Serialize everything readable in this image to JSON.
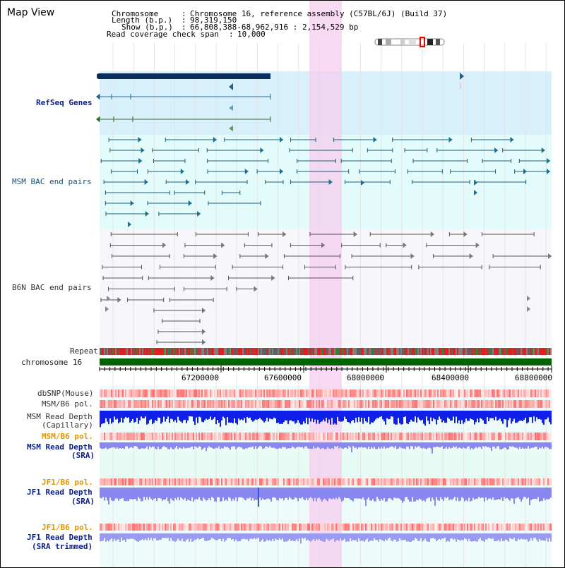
{
  "title": "Map View",
  "info": {
    "chromosome_key": "Chromosome",
    "chromosome_val": "Chromosome 16, reference assembly (C57BL/6J) (Build 37)",
    "length_key": "Length (b.p.)",
    "length_val": "98,319,150",
    "show_key": "Show (b.p.)",
    "show_val": "66,808,388-68,962,916 : 2,154,529 bp",
    "coverage_key": "Read coverage check span",
    "coverage_val": "10,000"
  },
  "tracks": {
    "refseq": "RefSeq Genes",
    "msm_bac": "MSM BAC end pairs",
    "b6n_bac": "B6N BAC end pairs",
    "repeat": "Repeat",
    "chromosome": "chromosome 16",
    "dbsnp": "dbSNP(Mouse)",
    "msm_b6_pol_1": "MSM/B6 pol.",
    "msm_read_depth_cap_1": "MSM Read Depth",
    "msm_read_depth_cap_2": "(Capillary)",
    "msm_b6_pol_2": "MSM/B6 pol.",
    "msm_read_depth_sra_1": "MSM Read Depth",
    "msm_read_depth_sra_2": "(SRA)",
    "jf1_b6_pol_1": "JF1/B6 pol.",
    "jf1_read_depth_sra_1": "JF1 Read Depth",
    "jf1_read_depth_sra_2": "(SRA)",
    "jf1_b6_pol_2": "JF1/B6 pol.",
    "jf1_read_depth_trim_1": "JF1 Read Depth",
    "jf1_read_depth_trim_2": "(SRA trimmed)"
  },
  "axis_ticks": [
    "67200000",
    "67600000",
    "68000000",
    "68400000",
    "68800000"
  ],
  "colors": {
    "refseq_bg": "#d8f0fb",
    "msm_bg": "#e3fbfb",
    "b6n_bg": "#f6f6fb",
    "highlight": "#f7cdef",
    "chromosome_bar": "#006400",
    "gene_bar": "#0b2d5c",
    "depth_blue": "#1020e8",
    "depth_light": "#8888f0",
    "bottom_bg": "#e6fbf3"
  }
}
